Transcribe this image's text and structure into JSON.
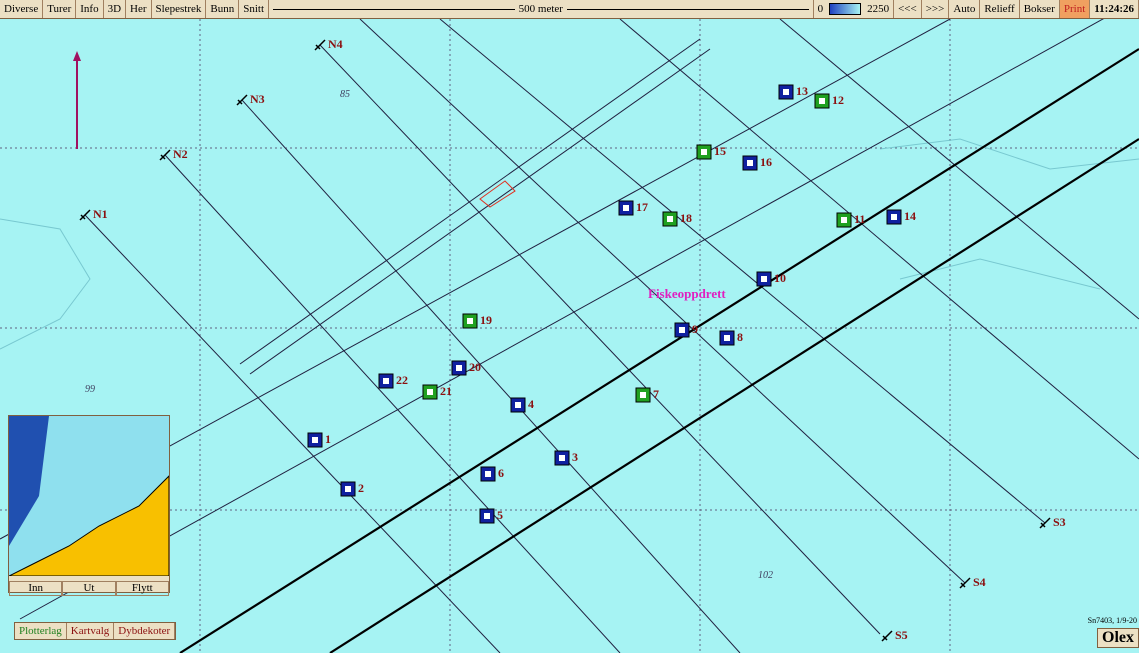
{
  "toolbar": {
    "left": [
      "Diverse",
      "Turer",
      "Info",
      "3D",
      "Her",
      "Slepestrek",
      "Bunn",
      "Snitt"
    ],
    "scale": "500 meter",
    "depth_min": 0,
    "depth_max": 2250,
    "right": [
      "<<<",
      ">>>",
      "Auto",
      "Relieff",
      "Bokser",
      "Print"
    ],
    "time": "11:24:26"
  },
  "map": {
    "markers": [
      {
        "label": "1",
        "color": "#1020a0"
      },
      {
        "label": "2",
        "color": "#1020a0"
      },
      {
        "label": "3",
        "color": "#1020a0"
      },
      {
        "label": "4",
        "color": "#1020a0"
      },
      {
        "label": "5",
        "color": "#1020a0"
      },
      {
        "label": "6",
        "color": "#1020a0"
      },
      {
        "label": "7",
        "color": "#20a020"
      },
      {
        "label": "8",
        "color": "#1020a0"
      },
      {
        "label": "9",
        "color": "#1020a0"
      },
      {
        "label": "10",
        "color": "#1020a0"
      },
      {
        "label": "11",
        "color": "#20a020"
      },
      {
        "label": "12",
        "color": "#20a020"
      },
      {
        "label": "13",
        "color": "#1020a0"
      },
      {
        "label": "14",
        "color": "#1020a0"
      },
      {
        "label": "15",
        "color": "#20a020"
      },
      {
        "label": "16",
        "color": "#1020a0"
      },
      {
        "label": "17",
        "color": "#1020a0"
      },
      {
        "label": "18",
        "color": "#20a020"
      },
      {
        "label": "19",
        "color": "#20a020"
      },
      {
        "label": "20",
        "color": "#1020a0"
      },
      {
        "label": "21",
        "color": "#20a020"
      },
      {
        "label": "22",
        "color": "#1020a0"
      }
    ],
    "waypoints": [
      "N1",
      "N2",
      "N3",
      "N4",
      "S3",
      "S4",
      "S5"
    ],
    "annotation": "Fiskeoppdrett",
    "depths": [
      85,
      99,
      102
    ],
    "credit": "Sn7403, 1/9-20"
  },
  "inset": {
    "buttons": [
      "Inn",
      "Ut",
      "Flytt"
    ]
  },
  "tabs": [
    "Plotterlag",
    "Kartvalg",
    "Dybdekoter"
  ],
  "brand": "Olex"
}
